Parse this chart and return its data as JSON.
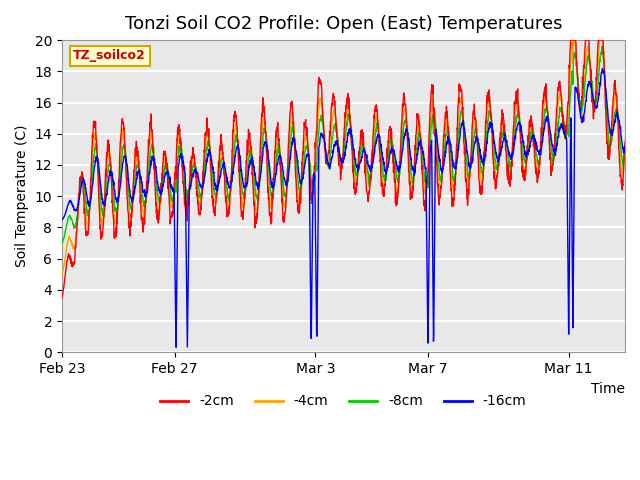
{
  "title": "Tonzi Soil CO2 Profile: Open (East) Temperatures",
  "xlabel": "Time",
  "ylabel": "Soil Temperature (C)",
  "ylim": [
    0,
    20
  ],
  "legend_label": "TZ_soilco2",
  "series_labels": [
    "-2cm",
    "-4cm",
    "-8cm",
    "-16cm"
  ],
  "series_colors": [
    "#ff0000",
    "#ffa500",
    "#00cc00",
    "#0000ff"
  ],
  "xtick_labels": [
    "Feb 23",
    "Feb 27",
    "Mar 3",
    "Mar 7",
    "Mar 11"
  ],
  "xtick_positions": [
    0,
    4,
    9,
    13,
    18
  ],
  "background_color": "#e8e8e8",
  "grid_color": "#ffffff",
  "title_fontsize": 13,
  "axis_fontsize": 10,
  "legend_box_color": "#ffffcc",
  "legend_box_edge": "#ccaa00",
  "blue_spike_times": [
    4.05,
    4.45,
    8.85,
    9.05,
    13.0,
    13.2,
    18.0,
    18.15
  ]
}
